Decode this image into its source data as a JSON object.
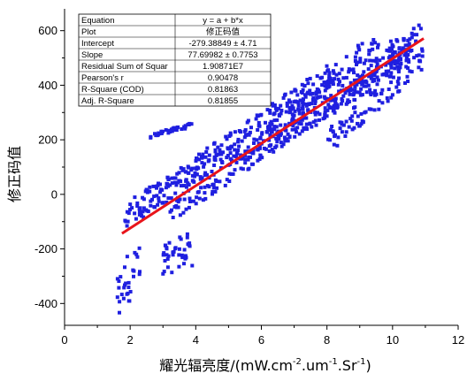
{
  "chart_data": {
    "type": "scatter",
    "xlabel": "耀光辐亮度/(mW.cm",
    "xlabel_sup1": "-2",
    "xlabel_mid": ".um",
    "xlabel_sup2": "-1",
    "xlabel_mid2": ".Sr",
    "xlabel_sup3": "-1",
    "xlabel_end": ")",
    "ylabel": "修正码值",
    "xlim": [
      0,
      12
    ],
    "ylim": [
      -480,
      680
    ],
    "xticks": [
      "0",
      "2",
      "4",
      "6",
      "8",
      "10",
      "12"
    ],
    "yticks": [
      "-400",
      "-200",
      "0",
      "200",
      "400",
      "600"
    ],
    "scatter_color": "#1f1fe0",
    "fit_color": "#e8141a",
    "fit_line": {
      "intercept": -279.38849,
      "slope": 77.69982,
      "x_range": [
        1.75,
        10.95
      ]
    },
    "scatter_bands": [
      {
        "x": [
          1.8,
          9.6
        ],
        "intercept": -235,
        "slope": 82,
        "spread": 50,
        "n": 260
      },
      {
        "x": [
          2.2,
          10.9
        ],
        "intercept": -200,
        "slope": 72,
        "spread": 45,
        "n": 220
      },
      {
        "x": [
          3.2,
          10.7
        ],
        "intercept": -330,
        "slope": 82,
        "spread": 40,
        "n": 180
      },
      {
        "x": [
          5.0,
          10.5
        ],
        "intercept": -310,
        "slope": 78,
        "spread": 35,
        "n": 140
      },
      {
        "x": [
          8.0,
          11.0
        ],
        "intercept": -650,
        "slope": 105,
        "spread": 45,
        "n": 90
      },
      {
        "x": [
          2.6,
          3.9
        ],
        "intercept": 130,
        "slope": 32,
        "spread": 8,
        "n": 40
      },
      {
        "x": [
          1.6,
          2.3
        ],
        "intercept": -700,
        "slope": 200,
        "spread": 90,
        "n": 30
      },
      {
        "x": [
          3.0,
          3.9
        ],
        "intercept": -360,
        "slope": 40,
        "spread": 70,
        "n": 40
      }
    ],
    "stats_table": [
      [
        "Equation",
        "y = a + b*x"
      ],
      [
        "Plot",
        "修正码值"
      ],
      [
        "Intercept",
        "-279.38849 ± 4.71"
      ],
      [
        "Slope",
        "77.69982 ± 0.7753"
      ],
      [
        "Residual Sum of Squar",
        "1.90871E7"
      ],
      [
        "Pearson's r",
        "0.90478"
      ],
      [
        "R-Square (COD)",
        "0.81863"
      ],
      [
        "Adj. R-Square",
        "0.81855"
      ]
    ]
  }
}
